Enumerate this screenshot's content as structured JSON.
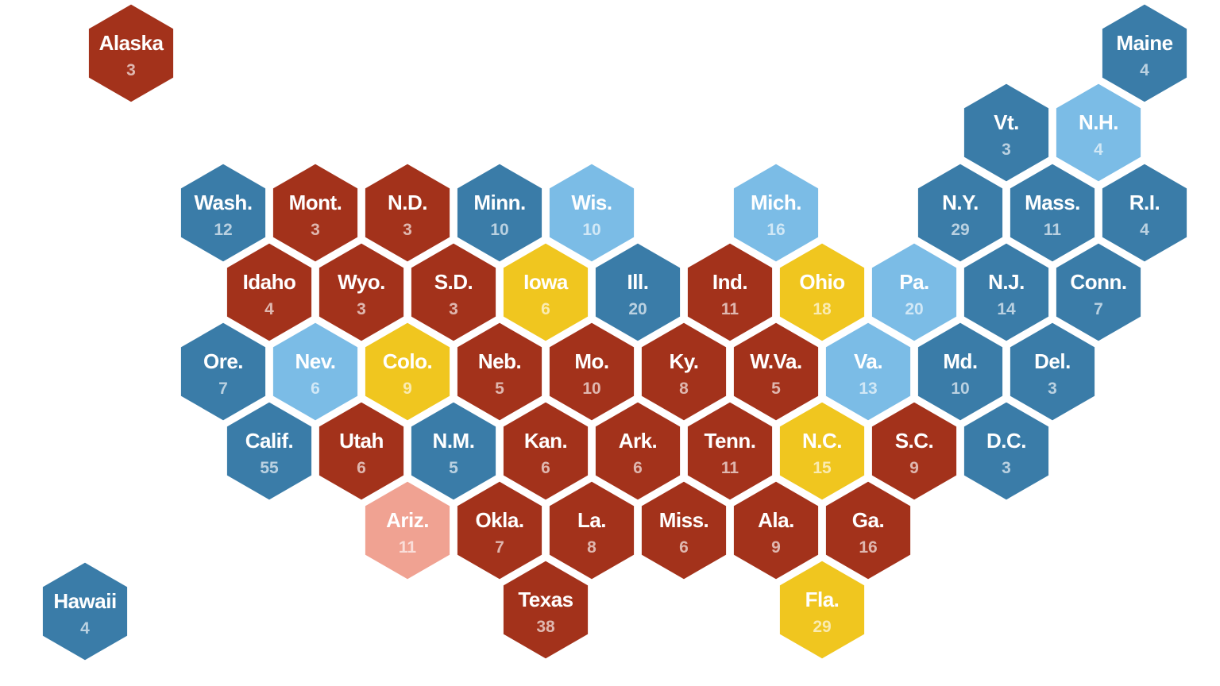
{
  "states": [
    {
      "label": "Alaska",
      "votes": 3,
      "color": "#a3321b"
    },
    {
      "label": "Maine",
      "votes": 4,
      "color": "#3a7ca8"
    },
    {
      "label": "Vt.",
      "votes": 3,
      "color": "#3a7ca8"
    },
    {
      "label": "N.H.",
      "votes": 4,
      "color": "#7bbce6"
    },
    {
      "label": "Wash.",
      "votes": 12,
      "color": "#3a7ca8"
    },
    {
      "label": "Mont.",
      "votes": 3,
      "color": "#a3321b"
    },
    {
      "label": "N.D.",
      "votes": 3,
      "color": "#a3321b"
    },
    {
      "label": "Minn.",
      "votes": 10,
      "color": "#3a7ca8"
    },
    {
      "label": "Wis.",
      "votes": 10,
      "color": "#7bbce6"
    },
    {
      "label": "Mich.",
      "votes": 16,
      "color": "#7bbce6"
    },
    {
      "label": "N.Y.",
      "votes": 29,
      "color": "#3a7ca8"
    },
    {
      "label": "Mass.",
      "votes": 11,
      "color": "#3a7ca8"
    },
    {
      "label": "R.I.",
      "votes": 4,
      "color": "#3a7ca8"
    },
    {
      "label": "Idaho",
      "votes": 4,
      "color": "#a3321b"
    },
    {
      "label": "Wyo.",
      "votes": 3,
      "color": "#a3321b"
    },
    {
      "label": "S.D.",
      "votes": 3,
      "color": "#a3321b"
    },
    {
      "label": "Iowa",
      "votes": 6,
      "color": "#f0c61f"
    },
    {
      "label": "Ill.",
      "votes": 20,
      "color": "#3a7ca8"
    },
    {
      "label": "Ind.",
      "votes": 11,
      "color": "#a3321b"
    },
    {
      "label": "Ohio",
      "votes": 18,
      "color": "#f0c61f"
    },
    {
      "label": "Pa.",
      "votes": 20,
      "color": "#7bbce6"
    },
    {
      "label": "N.J.",
      "votes": 14,
      "color": "#3a7ca8"
    },
    {
      "label": "Conn.",
      "votes": 7,
      "color": "#3a7ca8"
    },
    {
      "label": "Ore.",
      "votes": 7,
      "color": "#3a7ca8"
    },
    {
      "label": "Nev.",
      "votes": 6,
      "color": "#7bbce6"
    },
    {
      "label": "Colo.",
      "votes": 9,
      "color": "#f0c61f"
    },
    {
      "label": "Neb.",
      "votes": 5,
      "color": "#a3321b"
    },
    {
      "label": "Mo.",
      "votes": 10,
      "color": "#a3321b"
    },
    {
      "label": "Ky.",
      "votes": 8,
      "color": "#a3321b"
    },
    {
      "label": "W.Va.",
      "votes": 5,
      "color": "#a3321b"
    },
    {
      "label": "Va.",
      "votes": 13,
      "color": "#7bbce6"
    },
    {
      "label": "Md.",
      "votes": 10,
      "color": "#3a7ca8"
    },
    {
      "label": "Del.",
      "votes": 3,
      "color": "#3a7ca8"
    },
    {
      "label": "Calif.",
      "votes": 55,
      "color": "#3a7ca8"
    },
    {
      "label": "Utah",
      "votes": 6,
      "color": "#a3321b"
    },
    {
      "label": "N.M.",
      "votes": 5,
      "color": "#3a7ca8"
    },
    {
      "label": "Kan.",
      "votes": 6,
      "color": "#a3321b"
    },
    {
      "label": "Ark.",
      "votes": 6,
      "color": "#a3321b"
    },
    {
      "label": "Tenn.",
      "votes": 11,
      "color": "#a3321b"
    },
    {
      "label": "N.C.",
      "votes": 15,
      "color": "#f0c61f"
    },
    {
      "label": "S.C.",
      "votes": 9,
      "color": "#a3321b"
    },
    {
      "label": "D.C.",
      "votes": 3,
      "color": "#3a7ca8"
    },
    {
      "label": "Ariz.",
      "votes": 11,
      "color": "#f0a292"
    },
    {
      "label": "Okla.",
      "votes": 7,
      "color": "#a3321b"
    },
    {
      "label": "La.",
      "votes": 8,
      "color": "#a3321b"
    },
    {
      "label": "Miss.",
      "votes": 6,
      "color": "#a3321b"
    },
    {
      "label": "Ala.",
      "votes": 9,
      "color": "#a3321b"
    },
    {
      "label": "Ga.",
      "votes": 16,
      "color": "#a3321b"
    },
    {
      "label": "Texas",
      "votes": 38,
      "color": "#a3321b"
    },
    {
      "label": "Fla.",
      "votes": 29,
      "color": "#f0c61f"
    },
    {
      "label": "Hawaii",
      "votes": 4,
      "color": "#3a7ca8"
    }
  ]
}
